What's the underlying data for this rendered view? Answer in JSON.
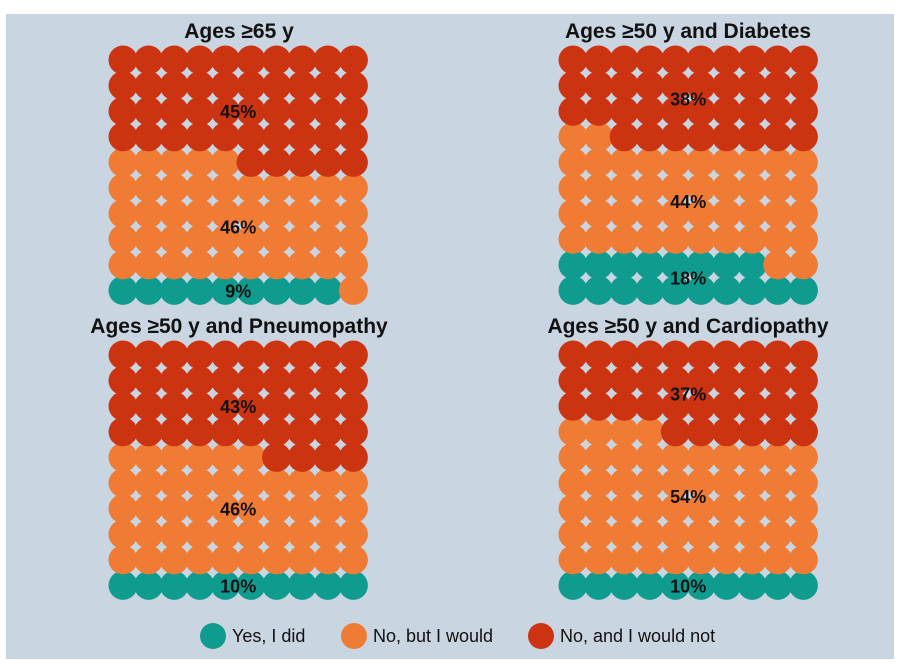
{
  "chart_data": {
    "type": "waffle",
    "categories": [
      "Yes, I did",
      "No, but I would",
      "No, and I would not"
    ],
    "colors": {
      "Yes, I did": "#0f9b8e",
      "No, but I would": "#ef7b35",
      "No, and I would not": "#cc3311"
    },
    "grid": {
      "rows": 10,
      "cols": 10
    },
    "panels": [
      {
        "title": "Ages ≥65 y",
        "values": [
          9,
          46,
          45
        ],
        "labels": [
          "9%",
          "46%",
          "45%"
        ]
      },
      {
        "title": "Ages ≥50 y and Diabetes",
        "values": [
          18,
          44,
          38
        ],
        "labels": [
          "18%",
          "44%",
          "38%"
        ]
      },
      {
        "title": "Ages ≥50 y and Pneumopathy",
        "values": [
          10,
          46,
          43
        ],
        "labels": [
          "10%",
          "46%",
          "43%"
        ]
      },
      {
        "title": "Ages ≥50 y and Cardiopathy",
        "values": [
          10,
          54,
          37
        ],
        "labels": [
          "10%",
          "54%",
          "37%"
        ]
      }
    ]
  },
  "legend": {
    "items": [
      {
        "label": "Yes, I did",
        "color": "#0f9b8e"
      },
      {
        "label": "No, but I would",
        "color": "#ef7b35"
      },
      {
        "label": "No, and I would not",
        "color": "#cc3311"
      }
    ]
  }
}
